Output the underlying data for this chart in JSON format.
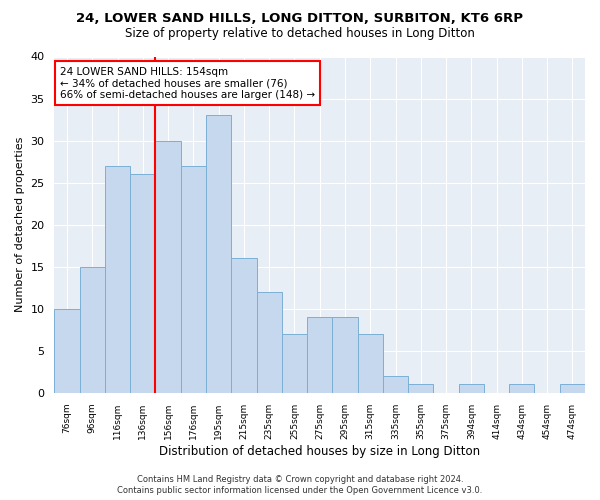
{
  "title1": "24, LOWER SAND HILLS, LONG DITTON, SURBITON, KT6 6RP",
  "title2": "Size of property relative to detached houses in Long Ditton",
  "xlabel": "Distribution of detached houses by size in Long Ditton",
  "ylabel": "Number of detached properties",
  "bin_labels": [
    "76sqm",
    "96sqm",
    "116sqm",
    "136sqm",
    "156sqm",
    "176sqm",
    "195sqm",
    "215sqm",
    "235sqm",
    "255sqm",
    "275sqm",
    "295sqm",
    "315sqm",
    "335sqm",
    "355sqm",
    "375sqm",
    "394sqm",
    "414sqm",
    "434sqm",
    "454sqm",
    "474sqm"
  ],
  "bar_values": [
    10,
    15,
    27,
    26,
    30,
    27,
    33,
    16,
    12,
    7,
    9,
    9,
    7,
    2,
    1,
    0,
    1,
    0,
    1,
    0,
    1
  ],
  "bar_color": "#c5d8ed",
  "bar_edge_color": "#7bafd4",
  "vline_color": "red",
  "annotation_title": "24 LOWER SAND HILLS: 154sqm",
  "annotation_line1": "← 34% of detached houses are smaller (76)",
  "annotation_line2": "66% of semi-detached houses are larger (148) →",
  "annotation_box_color": "white",
  "annotation_box_edge_color": "red",
  "footer1": "Contains HM Land Registry data © Crown copyright and database right 2024.",
  "footer2": "Contains public sector information licensed under the Open Government Licence v3.0.",
  "background_color": "#ffffff",
  "plot_bg_color": "#e8eef5",
  "grid_color": "#ffffff",
  "ylim": [
    0,
    40
  ],
  "yticks": [
    0,
    5,
    10,
    15,
    20,
    25,
    30,
    35,
    40
  ],
  "vline_bin_index": 4
}
